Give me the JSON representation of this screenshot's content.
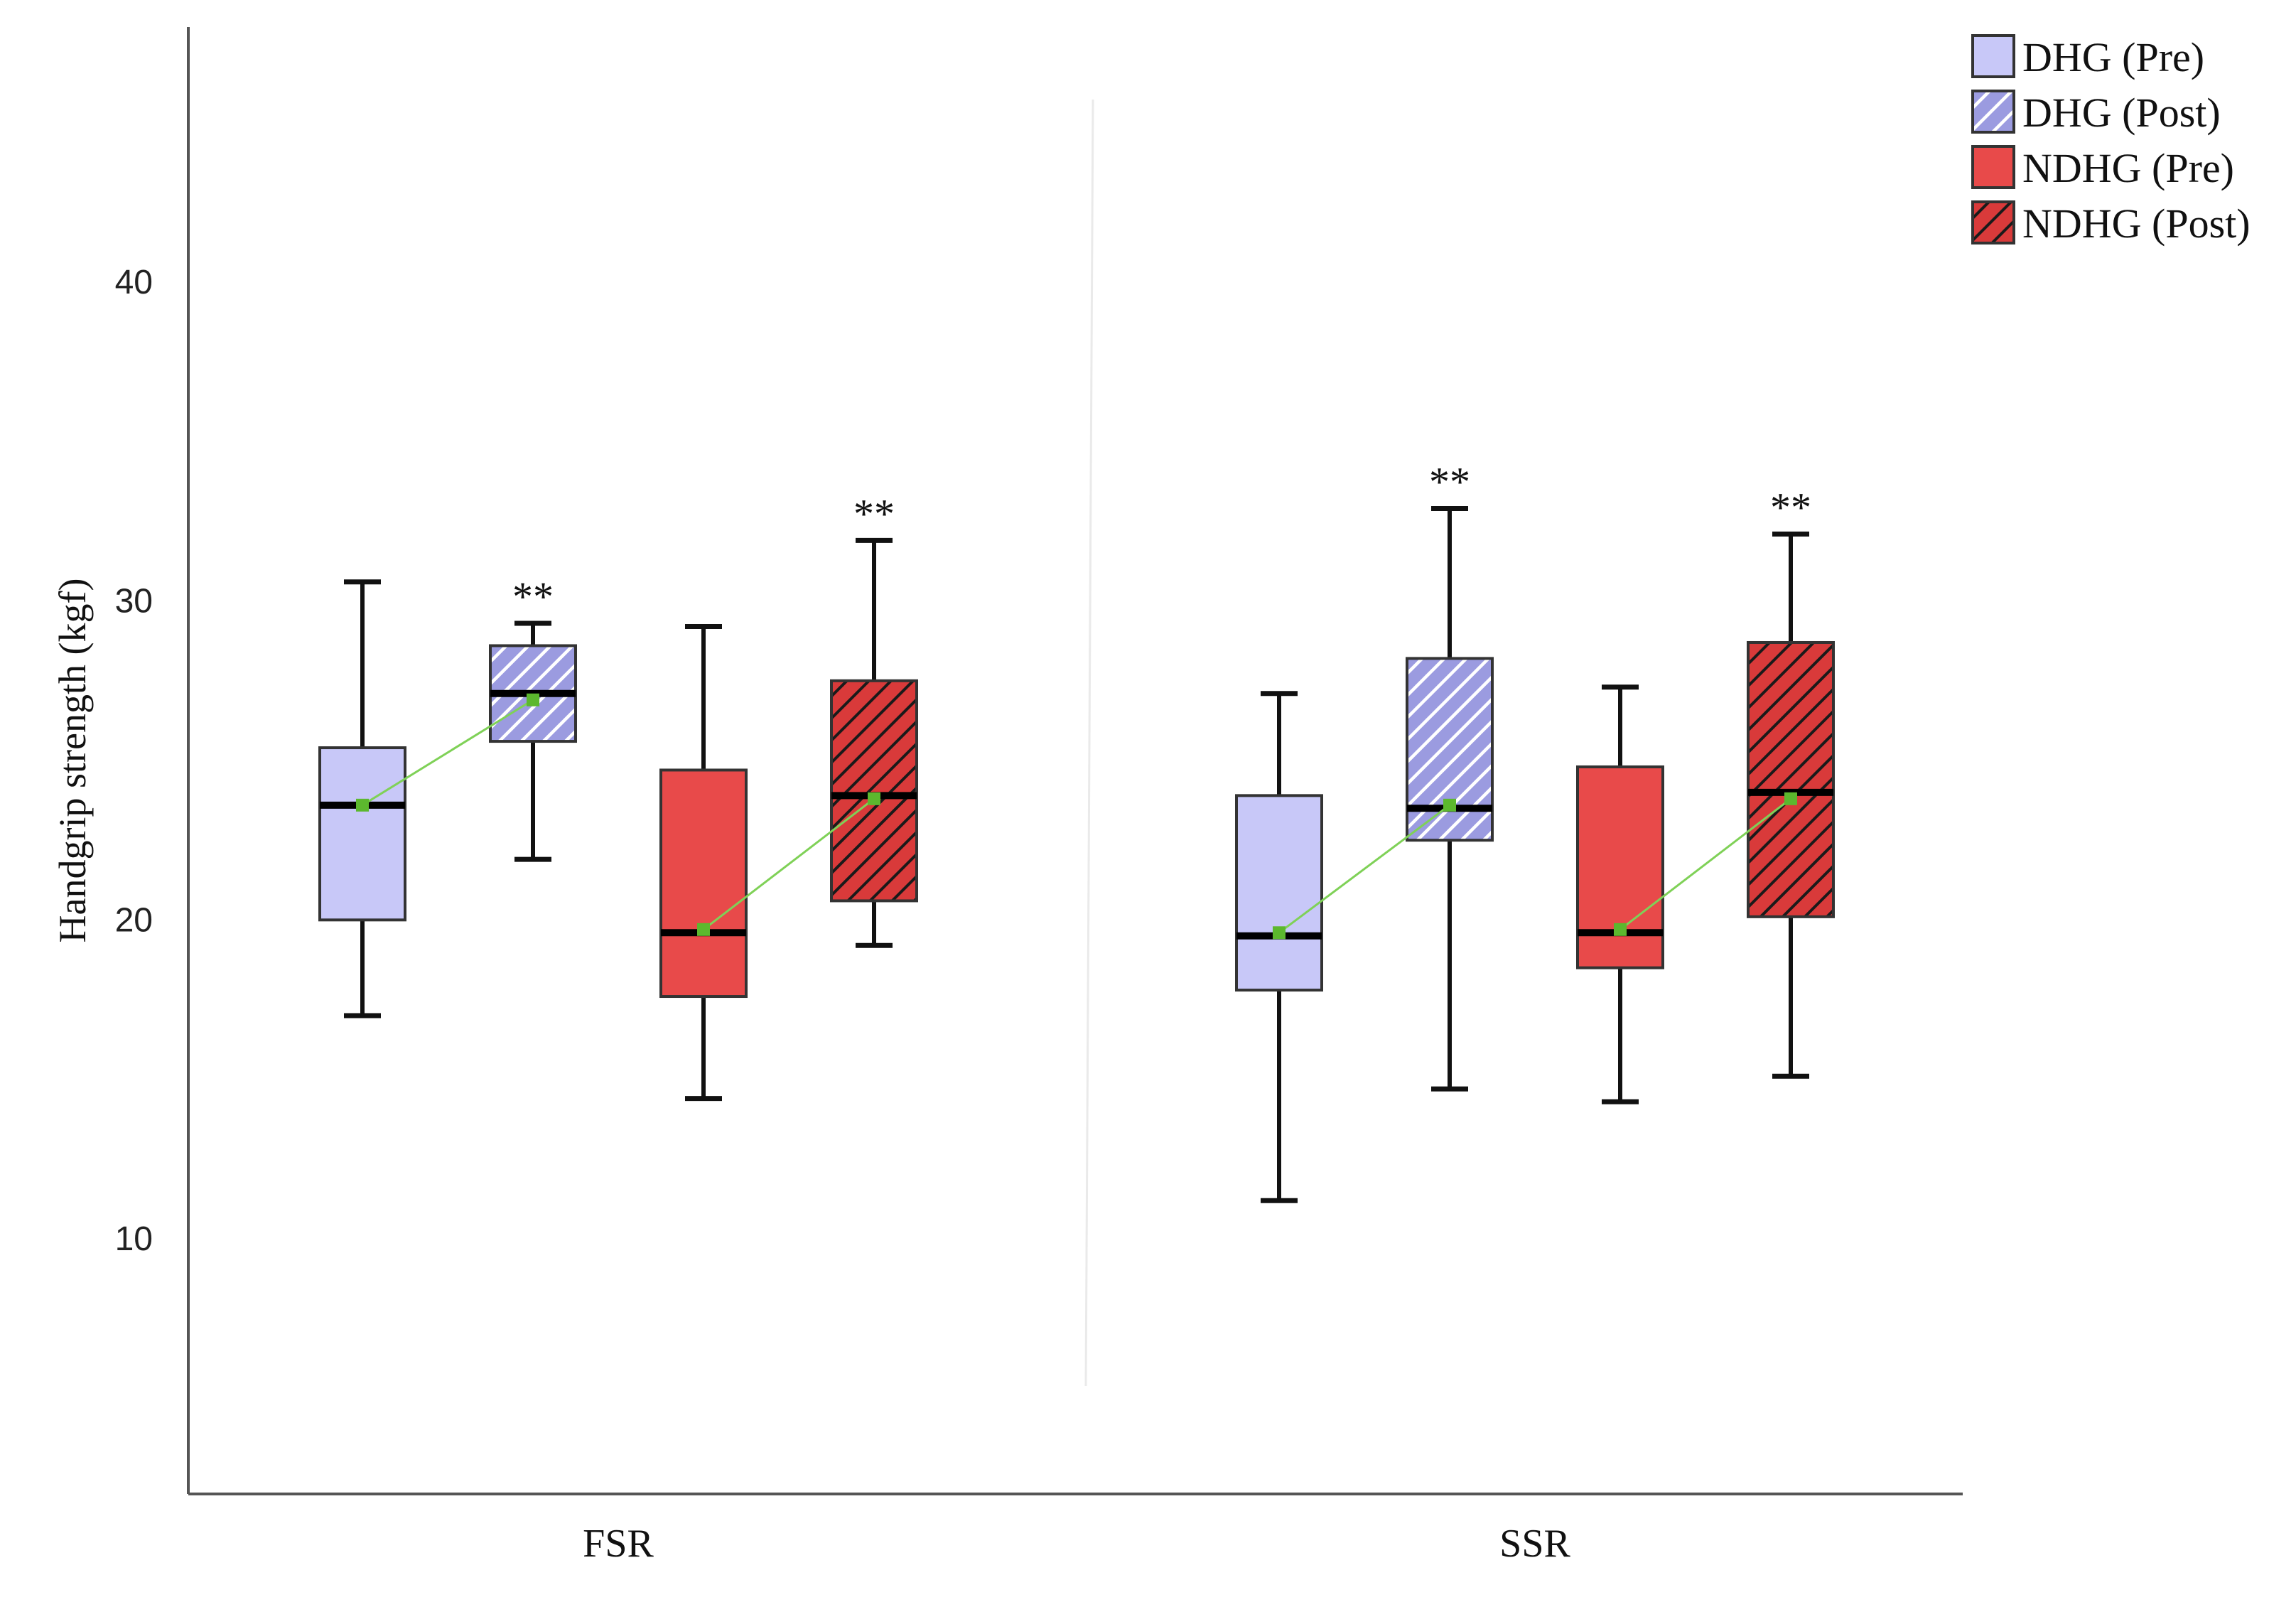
{
  "chart_data": {
    "type": "boxplot",
    "ylabel": "Handgrip strength (kgf)",
    "xlabel": "",
    "ylim": [
      2,
      48
    ],
    "yticks": [
      10,
      20,
      30,
      40
    ],
    "categories": [
      "FSR",
      "SSR"
    ],
    "legend_position": "top-right",
    "series": [
      {
        "name": "DHG (Pre)",
        "color": "#c8c8f8",
        "hatch": false
      },
      {
        "name": "DHG (Post)",
        "color": "#9b9be0",
        "hatch": true
      },
      {
        "name": "NDHG (Pre)",
        "color": "#e84a4a",
        "hatch": false
      },
      {
        "name": "NDHG (Post)",
        "color": "#d93a3a",
        "hatch": true
      }
    ],
    "boxes": [
      {
        "category": "FSR",
        "series": "DHG (Pre)",
        "min": 17.0,
        "q1": 20.0,
        "median": 23.6,
        "q3": 25.4,
        "max": 30.6,
        "mean": 23.6,
        "sig": ""
      },
      {
        "category": "FSR",
        "series": "DHG (Post)",
        "min": 21.9,
        "q1": 25.6,
        "median": 27.1,
        "q3": 28.6,
        "max": 29.3,
        "mean": 26.9,
        "sig": "**"
      },
      {
        "category": "FSR",
        "series": "NDHG (Pre)",
        "min": 14.4,
        "q1": 17.6,
        "median": 19.6,
        "q3": 24.7,
        "max": 29.2,
        "mean": 19.7,
        "sig": ""
      },
      {
        "category": "FSR",
        "series": "NDHG (Post)",
        "min": 19.2,
        "q1": 20.6,
        "median": 23.9,
        "q3": 27.5,
        "max": 31.9,
        "mean": 23.8,
        "sig": "**"
      },
      {
        "category": "SSR",
        "series": "DHG (Pre)",
        "min": 11.2,
        "q1": 17.8,
        "median": 19.5,
        "q3": 23.9,
        "max": 27.1,
        "mean": 19.6,
        "sig": ""
      },
      {
        "category": "SSR",
        "series": "DHG (Post)",
        "min": 14.7,
        "q1": 22.5,
        "median": 23.5,
        "q3": 28.2,
        "max": 32.9,
        "mean": 23.6,
        "sig": "**"
      },
      {
        "category": "SSR",
        "series": "NDHG (Pre)",
        "min": 14.3,
        "q1": 18.5,
        "median": 19.6,
        "q3": 24.8,
        "max": 27.3,
        "mean": 19.7,
        "sig": ""
      },
      {
        "category": "SSR",
        "series": "NDHG (Post)",
        "min": 15.1,
        "q1": 20.1,
        "median": 24.0,
        "q3": 28.7,
        "max": 32.1,
        "mean": 23.8,
        "sig": "**"
      }
    ],
    "mean_marker_color": "#5cb82e",
    "mean_line_color": "#7fd157"
  }
}
